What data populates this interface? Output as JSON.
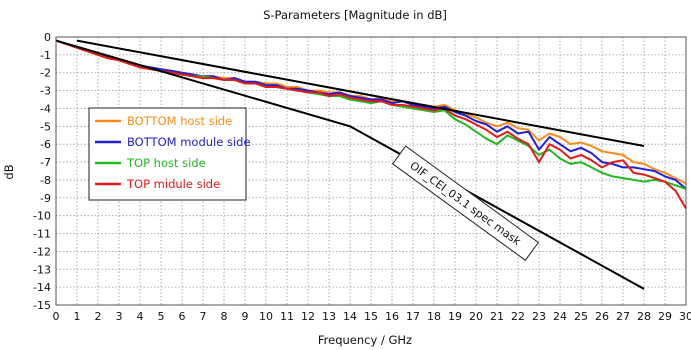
{
  "chart_data": {
    "type": "line",
    "title": "S-Parameters [Magnitude in dB]",
    "xlabel": "Frequency / GHz",
    "ylabel": "dB",
    "xlim": [
      0,
      30
    ],
    "ylim": [
      -15,
      0
    ],
    "x_ticks": [
      "0",
      "1",
      "2",
      "3",
      "4",
      "5",
      "6",
      "7",
      "8",
      "9",
      "10",
      "11",
      "12",
      "13",
      "14",
      "15",
      "16",
      "17",
      "18",
      "19",
      "20",
      "21",
      "22",
      "23",
      "24",
      "25",
      "26",
      "27",
      "28",
      "29",
      "30"
    ],
    "y_ticks": [
      "0",
      "-1",
      "-2",
      "-3",
      "-4",
      "-5",
      "-6",
      "-7",
      "-8",
      "-9",
      "-10",
      "-11",
      "-12",
      "-13",
      "-14",
      "-15"
    ],
    "grid": true,
    "legend_position": "middle-left",
    "series": [
      {
        "name": "BOTTOM host side",
        "color": "#ff8c1a",
        "x": [
          0,
          0.5,
          1,
          1.5,
          2,
          2.5,
          3,
          3.5,
          4,
          4.5,
          5,
          5.5,
          6,
          6.5,
          7,
          7.5,
          8,
          8.5,
          9,
          9.5,
          10,
          10.5,
          11,
          11.5,
          12,
          12.5,
          13,
          13.5,
          14,
          14.5,
          15,
          15.5,
          16,
          16.5,
          17,
          17.5,
          18,
          18.5,
          19,
          19.5,
          20,
          20.5,
          21,
          21.5,
          22,
          22.5,
          23,
          23.5,
          24,
          24.5,
          25,
          25.5,
          26,
          26.5,
          27,
          27.5,
          28,
          28.5,
          29,
          29.5,
          30
        ],
        "values": [
          -0.2,
          -0.4,
          -0.6,
          -0.8,
          -0.9,
          -1.1,
          -1.3,
          -1.4,
          -1.6,
          -1.7,
          -1.8,
          -1.9,
          -2.0,
          -2.1,
          -2.2,
          -2.2,
          -2.3,
          -2.3,
          -2.5,
          -2.5,
          -2.6,
          -2.6,
          -2.8,
          -2.8,
          -3.0,
          -3.0,
          -3.1,
          -3.1,
          -3.3,
          -3.3,
          -3.5,
          -3.4,
          -3.6,
          -3.6,
          -3.8,
          -3.8,
          -3.9,
          -3.8,
          -4.1,
          -4.3,
          -4.5,
          -4.8,
          -5.0,
          -4.8,
          -5.1,
          -5.2,
          -5.8,
          -5.4,
          -5.6,
          -6.0,
          -5.9,
          -6.1,
          -6.4,
          -6.5,
          -6.6,
          -7.0,
          -7.1,
          -7.4,
          -7.6,
          -7.9,
          -8.2
        ]
      },
      {
        "name": "BOTTOM module side",
        "color": "#1f1fd6",
        "x": [
          0,
          0.5,
          1,
          1.5,
          2,
          2.5,
          3,
          3.5,
          4,
          4.5,
          5,
          5.5,
          6,
          6.5,
          7,
          7.5,
          8,
          8.5,
          9,
          9.5,
          10,
          10.5,
          11,
          11.5,
          12,
          12.5,
          13,
          13.5,
          14,
          14.5,
          15,
          15.5,
          16,
          16.5,
          17,
          17.5,
          18,
          18.5,
          19,
          19.5,
          20,
          20.5,
          21,
          21.5,
          22,
          22.5,
          23,
          23.5,
          24,
          24.5,
          25,
          25.5,
          26,
          26.5,
          27,
          27.5,
          28,
          28.5,
          29,
          29.5,
          30
        ],
        "values": [
          -0.2,
          -0.4,
          -0.6,
          -0.8,
          -0.9,
          -1.1,
          -1.3,
          -1.5,
          -1.6,
          -1.7,
          -1.8,
          -1.9,
          -2.0,
          -2.1,
          -2.2,
          -2.2,
          -2.4,
          -2.3,
          -2.5,
          -2.5,
          -2.7,
          -2.7,
          -2.9,
          -2.9,
          -3.0,
          -3.1,
          -3.2,
          -3.1,
          -3.3,
          -3.4,
          -3.5,
          -3.5,
          -3.7,
          -3.6,
          -3.8,
          -3.9,
          -4.0,
          -3.9,
          -4.2,
          -4.4,
          -4.7,
          -4.9,
          -5.3,
          -5.0,
          -5.4,
          -5.3,
          -6.3,
          -5.6,
          -6.0,
          -6.4,
          -6.2,
          -6.5,
          -7.0,
          -7.1,
          -7.3,
          -7.3,
          -7.4,
          -7.5,
          -7.8,
          -8.0,
          -8.5
        ]
      },
      {
        "name": "TOP host side",
        "color": "#22b822",
        "x": [
          0,
          0.5,
          1,
          1.5,
          2,
          2.5,
          3,
          3.5,
          4,
          4.5,
          5,
          5.5,
          6,
          6.5,
          7,
          7.5,
          8,
          8.5,
          9,
          9.5,
          10,
          10.5,
          11,
          11.5,
          12,
          12.5,
          13,
          13.5,
          14,
          14.5,
          15,
          15.5,
          16,
          16.5,
          17,
          17.5,
          18,
          18.5,
          19,
          19.5,
          20,
          20.5,
          21,
          21.5,
          22,
          22.5,
          23,
          23.5,
          24,
          24.5,
          25,
          25.5,
          26,
          26.5,
          27,
          27.5,
          28,
          28.5,
          29,
          29.5,
          30
        ],
        "values": [
          -0.2,
          -0.4,
          -0.6,
          -0.8,
          -1.0,
          -1.2,
          -1.3,
          -1.5,
          -1.6,
          -1.8,
          -1.9,
          -2.0,
          -2.1,
          -2.2,
          -2.2,
          -2.3,
          -2.4,
          -2.4,
          -2.6,
          -2.6,
          -2.8,
          -2.8,
          -2.9,
          -3.0,
          -3.1,
          -3.2,
          -3.3,
          -3.3,
          -3.5,
          -3.6,
          -3.7,
          -3.6,
          -3.8,
          -3.9,
          -4.0,
          -4.1,
          -4.2,
          -4.1,
          -4.6,
          -4.9,
          -5.3,
          -5.7,
          -6.0,
          -5.5,
          -5.8,
          -6.1,
          -6.6,
          -6.3,
          -6.8,
          -7.1,
          -7.0,
          -7.3,
          -7.6,
          -7.8,
          -7.9,
          -8.0,
          -8.1,
          -8.0,
          -8.1,
          -8.3,
          -8.5
        ]
      },
      {
        "name": "TOP midule side",
        "color": "#e61919",
        "x": [
          0,
          0.5,
          1,
          1.5,
          2,
          2.5,
          3,
          3.5,
          4,
          4.5,
          5,
          5.5,
          6,
          6.5,
          7,
          7.5,
          8,
          8.5,
          9,
          9.5,
          10,
          10.5,
          11,
          11.5,
          12,
          12.5,
          13,
          13.5,
          14,
          14.5,
          15,
          15.5,
          16,
          16.5,
          17,
          17.5,
          18,
          18.5,
          19,
          19.5,
          20,
          20.5,
          21,
          21.5,
          22,
          22.5,
          23,
          23.5,
          24,
          24.5,
          25,
          25.5,
          26,
          26.5,
          27,
          27.5,
          28,
          28.5,
          29,
          29.5,
          30
        ],
        "values": [
          -0.2,
          -0.4,
          -0.6,
          -0.8,
          -1.0,
          -1.2,
          -1.3,
          -1.5,
          -1.7,
          -1.8,
          -1.9,
          -2.0,
          -2.1,
          -2.2,
          -2.3,
          -2.3,
          -2.4,
          -2.4,
          -2.6,
          -2.6,
          -2.8,
          -2.8,
          -2.9,
          -3.0,
          -3.1,
          -3.1,
          -3.3,
          -3.2,
          -3.4,
          -3.5,
          -3.6,
          -3.6,
          -3.8,
          -3.8,
          -3.9,
          -4.0,
          -4.1,
          -4.0,
          -4.4,
          -4.6,
          -4.9,
          -5.2,
          -5.6,
          -5.3,
          -5.7,
          -6.0,
          -7.0,
          -6.0,
          -6.3,
          -6.8,
          -6.6,
          -6.9,
          -7.3,
          -7.0,
          -6.9,
          -7.6,
          -7.7,
          -7.9,
          -8.1,
          -8.6,
          -9.6
        ]
      }
    ],
    "spec_mask": {
      "color": "#000000",
      "upper": {
        "x": [
          1,
          28
        ],
        "values": [
          -0.2,
          -6.1
        ]
      },
      "lower": {
        "x": [
          0,
          14,
          28
        ],
        "values": [
          -0.2,
          -5.0,
          -14.1
        ]
      }
    },
    "annotations": [
      {
        "text": "OIF_CEI_03.1 spec mask",
        "x": 19.5,
        "y": -9.3,
        "angle": 36
      }
    ]
  }
}
